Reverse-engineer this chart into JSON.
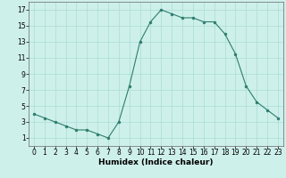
{
  "x": [
    0,
    1,
    2,
    3,
    4,
    5,
    6,
    7,
    8,
    9,
    10,
    11,
    12,
    13,
    14,
    15,
    16,
    17,
    18,
    19,
    20,
    21,
    22,
    23
  ],
  "y": [
    4.0,
    3.5,
    3.0,
    2.5,
    2.0,
    2.0,
    1.5,
    1.0,
    3.0,
    7.5,
    13.0,
    15.5,
    17.0,
    16.5,
    16.0,
    16.0,
    15.5,
    15.5,
    14.0,
    11.5,
    7.5,
    5.5,
    4.5,
    3.5
  ],
  "xlabel": "Humidex (Indice chaleur)",
  "xlim": [
    -0.5,
    23.5
  ],
  "ylim": [
    0,
    18
  ],
  "xticks": [
    0,
    1,
    2,
    3,
    4,
    5,
    6,
    7,
    8,
    9,
    10,
    11,
    12,
    13,
    14,
    15,
    16,
    17,
    18,
    19,
    20,
    21,
    22,
    23
  ],
  "yticks": [
    1,
    3,
    5,
    7,
    9,
    11,
    13,
    15,
    17
  ],
  "line_color": "#2e7d6e",
  "marker_color": "#2e7d6e",
  "bg_color": "#cef0ea",
  "grid_color": "#aaddd5",
  "axis_fontsize": 5.5,
  "label_fontsize": 6.5
}
